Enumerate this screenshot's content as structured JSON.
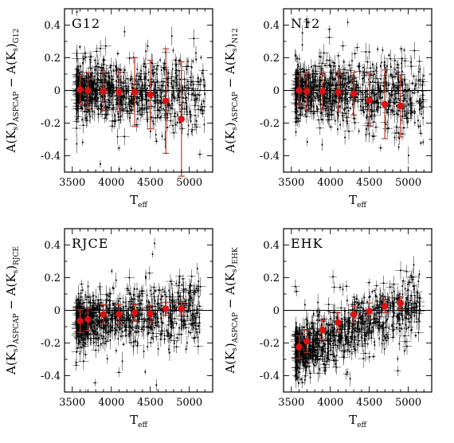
{
  "figure": {
    "xlabel": "T",
    "xlabel_sub": "eff",
    "ylabel_parts": {
      "a": "A(K",
      "s": "s",
      "close": ")",
      "sub1": "ASPCAP",
      "minus": " − ",
      "a2": "A(K",
      "s2": "s",
      "close2": ")"
    },
    "colors": {
      "points": "#000000",
      "means": "#dd1111",
      "mean_errorbars": "#c0392b",
      "frame": "#000000"
    }
  },
  "chart_data": [
    {
      "type": "scatter",
      "title": "G12",
      "ylabel_suffix": "G12",
      "xlim": [
        3400,
        5300
      ],
      "ylim": [
        -0.5,
        0.5
      ],
      "xticks": [
        3500,
        4000,
        4500,
        5000
      ],
      "yticks": [
        0.4,
        0.2,
        0,
        -0.2,
        -0.4
      ],
      "ytick_labels": [
        "0.4",
        "0.2",
        "0",
        "-0.2",
        "-0.4"
      ],
      "hline": 0,
      "points_trend": {
        "x_range": [
          3550,
          5200
        ],
        "y_start": 0.0,
        "y_end": -0.02,
        "scatter": 0.08
      },
      "means": {
        "x": [
          3600,
          3700,
          3900,
          4100,
          4300,
          4500,
          4700,
          4900
        ],
        "y": [
          0.005,
          0.0,
          -0.005,
          -0.01,
          -0.01,
          -0.025,
          -0.065,
          -0.175
        ],
        "err": [
          0.09,
          0.11,
          0.12,
          0.12,
          0.21,
          0.21,
          0.32,
          0.35
        ]
      }
    },
    {
      "type": "scatter",
      "title": "N12",
      "ylabel_suffix": "N12",
      "xlim": [
        3400,
        5300
      ],
      "ylim": [
        -0.5,
        0.5
      ],
      "xticks": [
        3500,
        4000,
        4500,
        5000
      ],
      "yticks": [
        0.4,
        0.2,
        0,
        -0.2,
        -0.4
      ],
      "ytick_labels": [
        "0.4",
        "0.2",
        "0",
        "-0.2",
        "-0.4"
      ],
      "hline": 0,
      "points_trend": {
        "x_range": [
          3550,
          5200
        ],
        "y_start": 0.0,
        "y_end": -0.05,
        "scatter": 0.08
      },
      "means": {
        "x": [
          3600,
          3700,
          3900,
          4100,
          4300,
          4500,
          4700,
          4900
        ],
        "y": [
          0.0,
          -0.005,
          -0.005,
          -0.01,
          -0.02,
          -0.06,
          -0.085,
          -0.095
        ],
        "err": [
          0.09,
          0.11,
          0.11,
          0.12,
          0.13,
          0.16,
          0.21,
          0.19
        ]
      }
    },
    {
      "type": "scatter",
      "title": "RJCE",
      "ylabel_suffix": "RJCE",
      "xlim": [
        3400,
        5300
      ],
      "ylim": [
        -0.5,
        0.5
      ],
      "xticks": [
        3500,
        4000,
        4500,
        5000
      ],
      "yticks": [
        0.4,
        0.2,
        0,
        -0.2,
        -0.4
      ],
      "ytick_labels": [
        "0.4",
        "0.2",
        "0",
        "-0.2",
        "-0.4"
      ],
      "hline": 0,
      "points_trend": {
        "x_range": [
          3550,
          5150
        ],
        "y_start": -0.08,
        "y_end": 0.01,
        "scatter": 0.07
      },
      "means": {
        "x": [
          3600,
          3700,
          3900,
          4100,
          4300,
          4500,
          4700,
          4900
        ],
        "y": [
          -0.065,
          -0.055,
          -0.025,
          -0.025,
          -0.015,
          -0.02,
          0.01,
          0.01
        ],
        "err": [
          0.07,
          0.07,
          0.06,
          0.06,
          0.05,
          0.05,
          0.04,
          0.04
        ]
      }
    },
    {
      "type": "scatter",
      "title": "EHK",
      "ylabel_suffix": "EHK",
      "xlim": [
        3400,
        5300
      ],
      "ylim": [
        -0.5,
        0.5
      ],
      "xticks": [
        3500,
        4000,
        4500,
        5000
      ],
      "yticks": [
        0.4,
        0.2,
        0,
        -0.2,
        -0.4
      ],
      "ytick_labels": [
        "0.4",
        "0.2",
        "0",
        "-0.2",
        "-0.4"
      ],
      "hline": 0,
      "points_trend": {
        "x_range": [
          3550,
          5150
        ],
        "y_start": -0.26,
        "y_end": 0.05,
        "scatter": 0.07
      },
      "means": {
        "x": [
          3600,
          3700,
          3900,
          4100,
          4300,
          4500,
          4700,
          4900
        ],
        "y": [
          -0.225,
          -0.19,
          -0.12,
          -0.075,
          -0.025,
          -0.005,
          0.025,
          0.045
        ],
        "err": [
          0.07,
          0.07,
          0.06,
          0.06,
          0.05,
          0.05,
          0.04,
          0.04
        ]
      }
    }
  ]
}
